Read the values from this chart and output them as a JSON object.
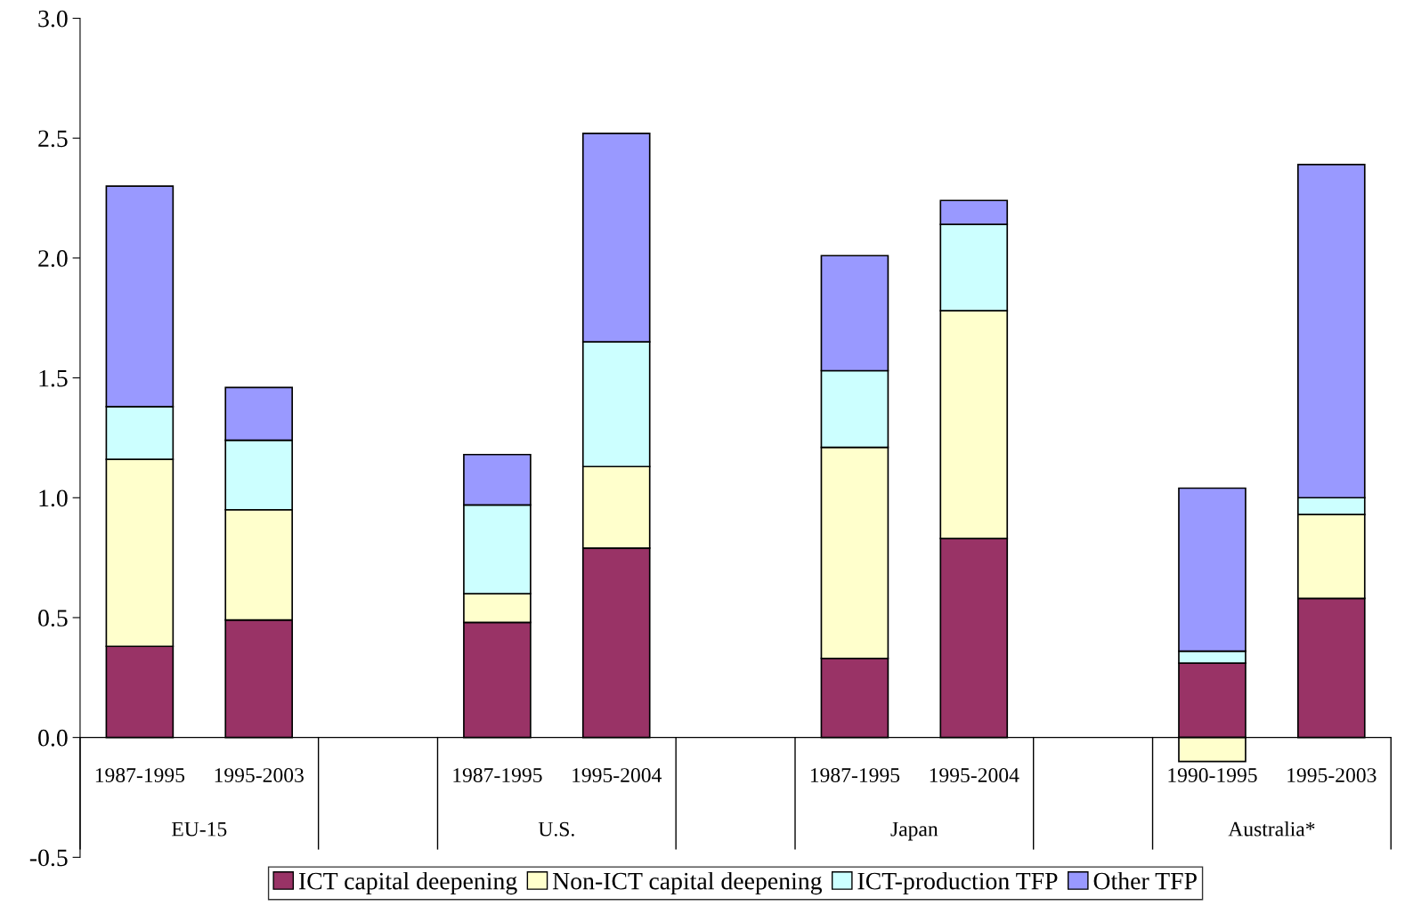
{
  "chart_data": {
    "type": "bar",
    "stacked": true,
    "categories": [
      "1987-1995",
      "1995-2003",
      null,
      "1987-1995",
      "1995-2004",
      null,
      "1987-1995",
      "1995-2004",
      null,
      "1990-1995",
      "1995-2003"
    ],
    "series": [
      {
        "name": "ICT capital deepening",
        "color": "#993366",
        "values": [
          0.38,
          0.49,
          null,
          0.48,
          0.79,
          null,
          0.33,
          0.83,
          null,
          0.31,
          0.58
        ]
      },
      {
        "name": "Non-ICT capital deepening",
        "color": "#ffffcc",
        "values": [
          0.78,
          0.46,
          null,
          0.12,
          0.34,
          null,
          0.88,
          0.95,
          null,
          -0.1,
          0.35
        ]
      },
      {
        "name": "ICT-production TFP",
        "color": "#ccffff",
        "values": [
          0.22,
          0.29,
          null,
          0.37,
          0.52,
          null,
          0.32,
          0.36,
          null,
          0.05,
          0.07
        ]
      },
      {
        "name": "Other TFP",
        "color": "#9999ff",
        "values": [
          0.92,
          0.22,
          null,
          0.21,
          0.87,
          null,
          0.48,
          0.1,
          null,
          0.68,
          1.39
        ]
      }
    ],
    "annotations": [
      "EU-15",
      "U.S.",
      "Japan",
      "Australia*"
    ],
    "ylim": [
      -0.5,
      3.0
    ],
    "yticks": [
      -0.5,
      {
        "value": 0,
        "label": "0.0"
      },
      0.5,
      {
        "value": 1,
        "label": "1.0"
      },
      1.5,
      {
        "value": 2,
        "label": "2.0"
      },
      2.5,
      {
        "value": 3,
        "label": "3.0"
      }
    ],
    "grid": false,
    "legend": "bottom"
  }
}
